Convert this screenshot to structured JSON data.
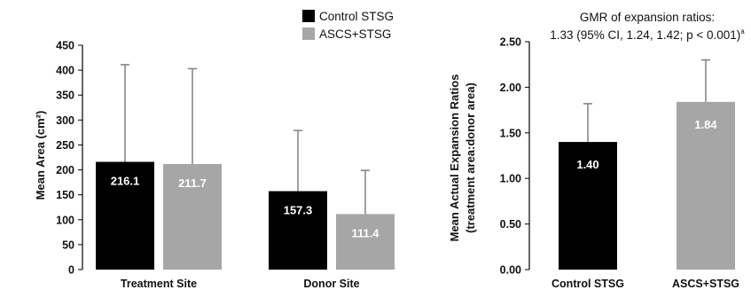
{
  "colors": {
    "control": "#000000",
    "ascs": "#a6a6a6",
    "error": "#808080",
    "axis": "#000000"
  },
  "legend": [
    {
      "label": "Control STSG",
      "color": "#000000"
    },
    {
      "label": "ASCS+STSG",
      "color": "#a6a6a6"
    }
  ],
  "chart_data": [
    {
      "type": "bar",
      "ylabel": "Mean Area (cm²)",
      "xlabel": "",
      "ylim": [
        0,
        450
      ],
      "yticks": [
        "0",
        "50",
        "100",
        "150",
        "200",
        "250",
        "300",
        "350",
        "400",
        "450"
      ],
      "categories": [
        "Treatment Site",
        "Donor Site"
      ],
      "series": [
        {
          "name": "Control STSG",
          "values": [
            216.1,
            157.3
          ],
          "labels": [
            "216.1",
            "157.3"
          ],
          "error_upper": [
            411,
            279
          ]
        },
        {
          "name": "ASCS+STSG",
          "values": [
            211.7,
            111.4
          ],
          "labels": [
            "211.7",
            "111.4"
          ],
          "error_upper": [
            403,
            199
          ]
        }
      ],
      "grid": false,
      "legend_position": "top"
    },
    {
      "type": "bar",
      "ylabel_line1": "Mean Actual Expansion Ratios",
      "ylabel_line2": "(treatment area:donor area)",
      "xlabel": "",
      "ylim": [
        0,
        2.5
      ],
      "yticks": [
        "0.00",
        "0.50",
        "1.00",
        "1.50",
        "2.00",
        "2.50"
      ],
      "categories": [
        "Control STSG",
        "ASCS+STSG"
      ],
      "values": [
        1.4,
        1.84
      ],
      "labels": [
        "1.40",
        "1.84"
      ],
      "error_upper": [
        1.82,
        2.3
      ],
      "annotation_line1": "GMR of expansion ratios:",
      "annotation_line2": "1.33 (95% CI, 1.24, 1.42; p < 0.001)",
      "annotation_superscript": "a",
      "grid": false
    }
  ]
}
